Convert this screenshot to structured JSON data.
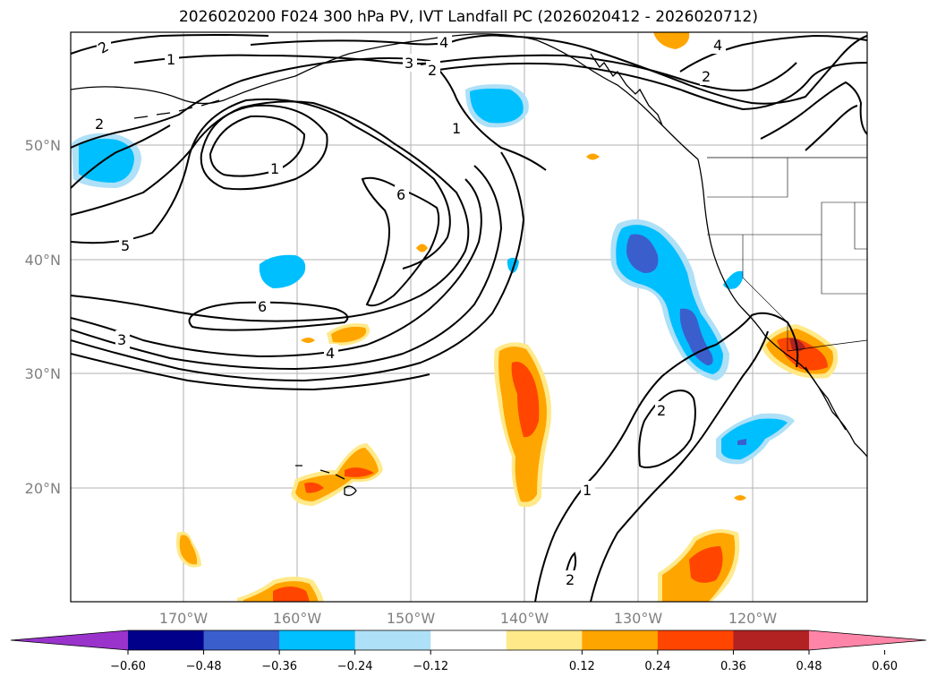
{
  "title": "2026020200 F024 300 hPa PV, IVT Landfall PC (2026020412 - 2026020712)",
  "axes": {
    "lat_labels": [
      "50°N",
      "40°N",
      "30°N",
      "20°N"
    ],
    "lon_labels": [
      "170°W",
      "160°W",
      "150°W",
      "140°W",
      "130°W",
      "120°W"
    ]
  },
  "contour_labels": [
    "2",
    "1",
    "4",
    "3",
    "2",
    "4",
    "2",
    "2",
    "1",
    "1",
    "6",
    "5",
    "6",
    "3",
    "4",
    "2",
    "1",
    "2"
  ],
  "colorbar": {
    "ticks": [
      "−0.60",
      "−0.48",
      "−0.36",
      "−0.24",
      "−0.12",
      "0.12",
      "0.24",
      "0.36",
      "0.48",
      "0.60"
    ],
    "colors": [
      "#9933cc",
      "#00008b",
      "#3a5fcd",
      "#00bfff",
      "#aee0f7",
      "#ffffff",
      "#ffe989",
      "#ffa500",
      "#ff4500",
      "#b22222",
      "#ff85a8"
    ]
  }
}
